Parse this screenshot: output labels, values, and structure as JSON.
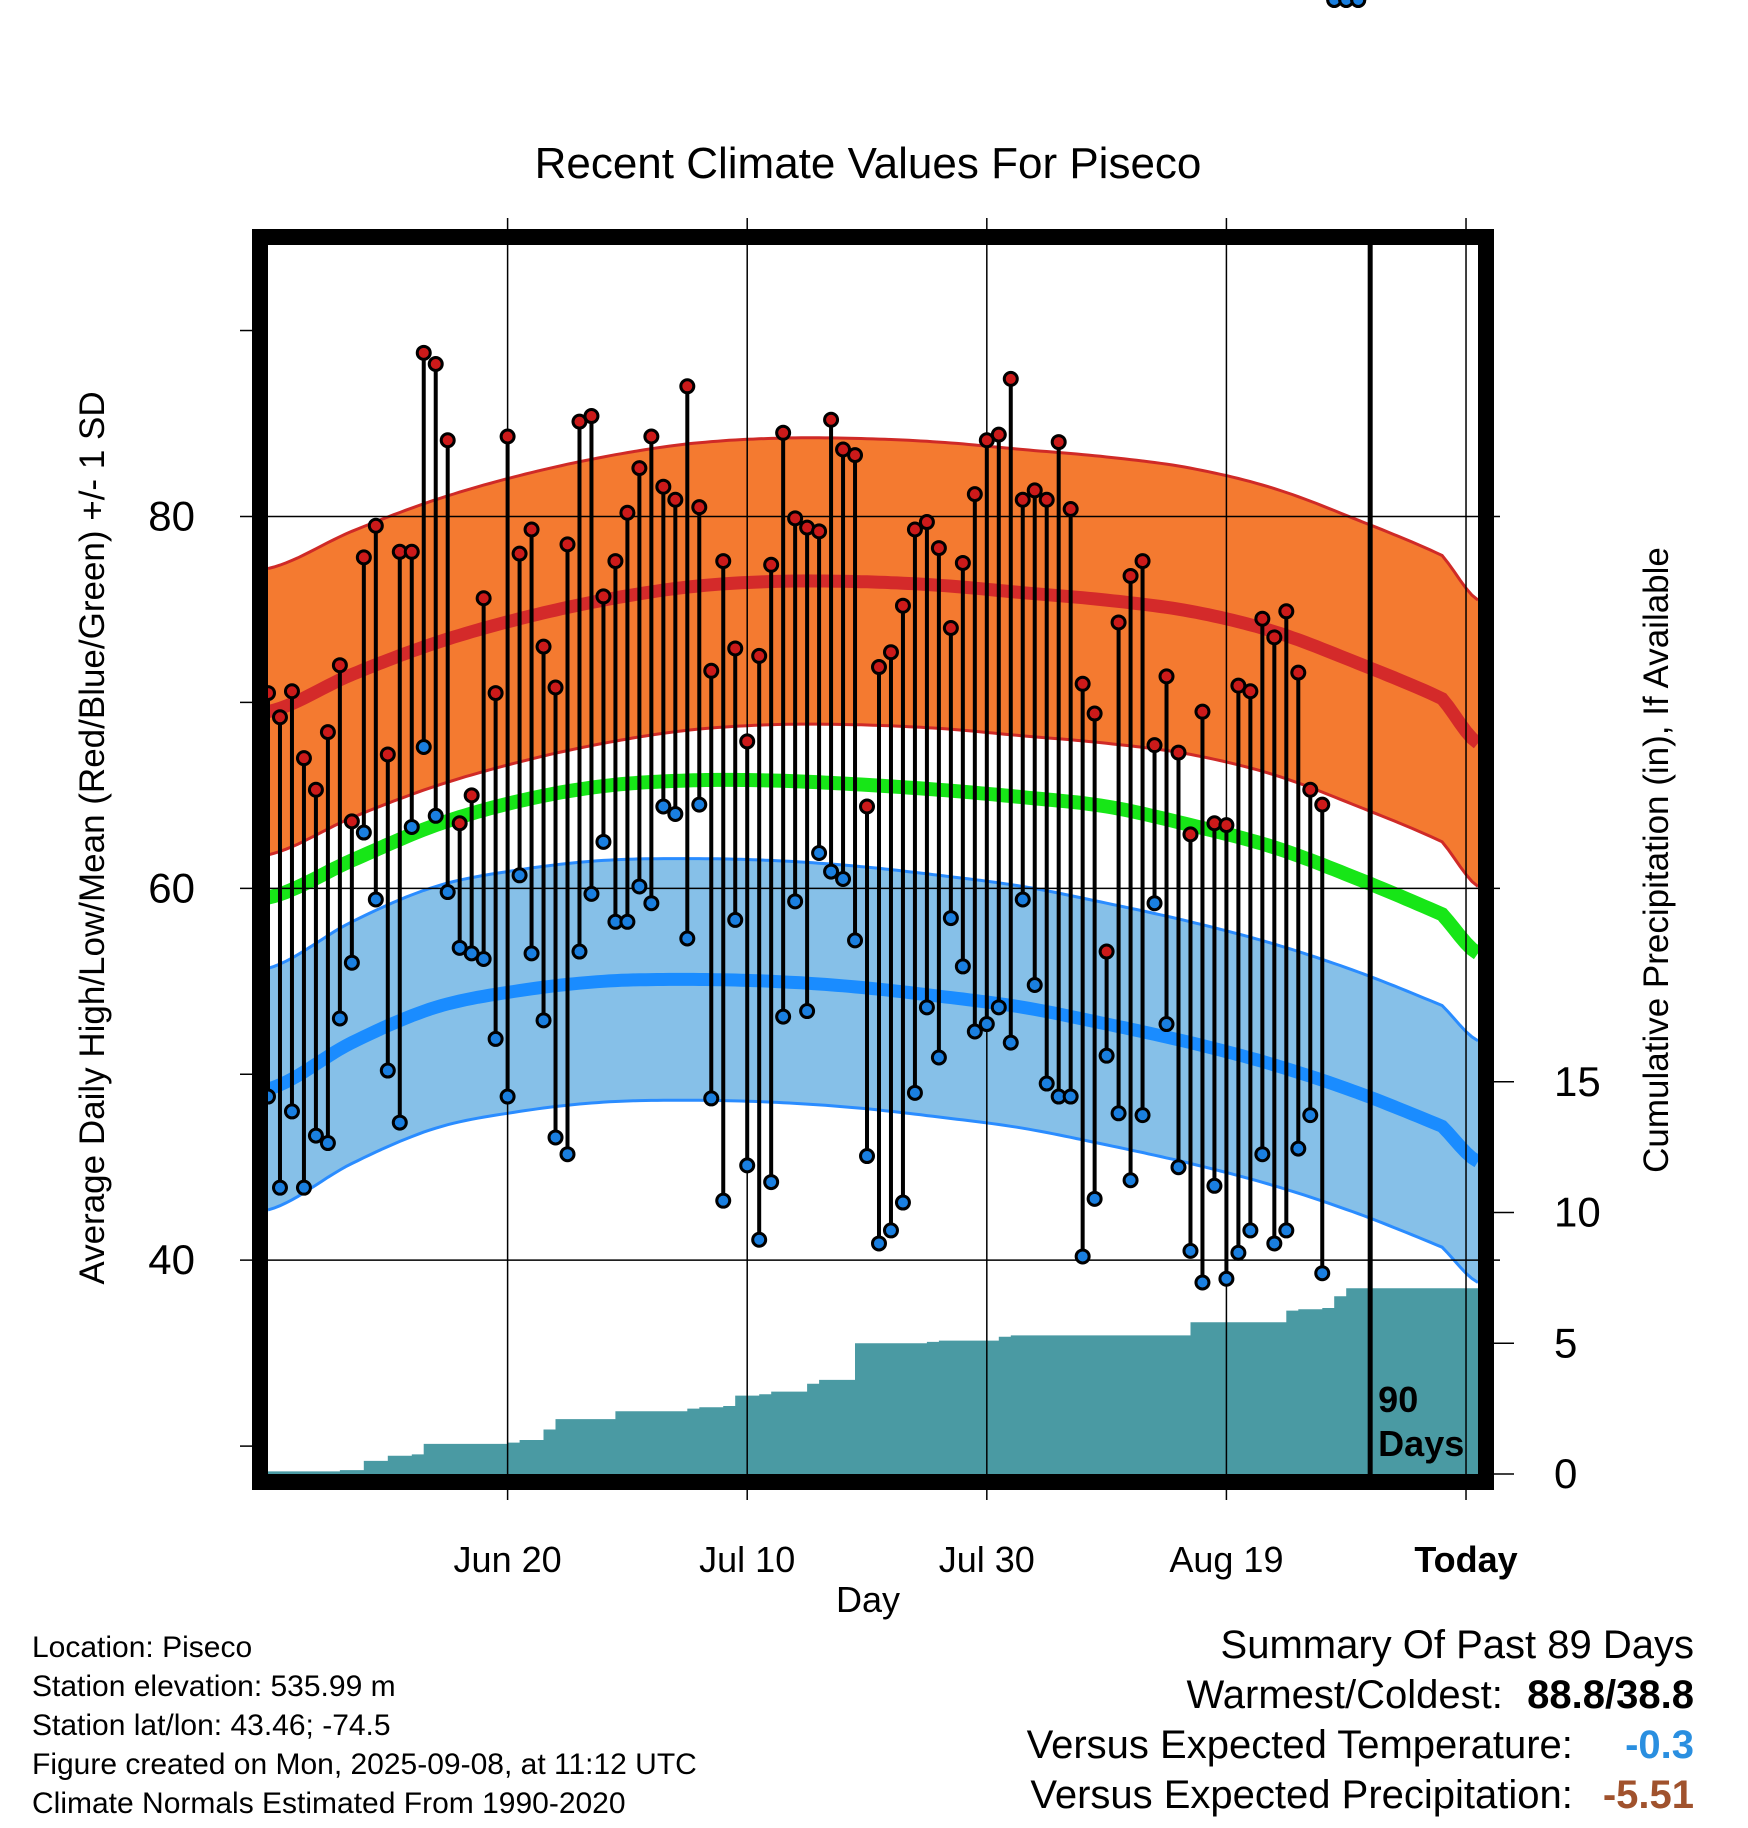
{
  "chart_data": {
    "type": "line",
    "title": "Recent Climate Values For Piseco",
    "xlabel": "Day",
    "ylabel": "Average Daily High/Low/Mean (Red/Blue/Green) +/- 1 SD",
    "y2label": "Cumulative Precipitation (in), If Available",
    "x_tick_labels": [
      "Jun 20",
      "Jul 10",
      "Jul 30",
      "Aug 19",
      "Today"
    ],
    "y_ticks": [
      40,
      60,
      80
    ],
    "y2_ticks": [
      0,
      5,
      10,
      15
    ],
    "ylim": [
      28.5,
      94.6
    ],
    "y2lim": [
      0,
      47
    ],
    "day_range": [
      -92,
      9
    ],
    "today_label": [
      "90",
      "Days"
    ],
    "grid": true,
    "colors": {
      "high_band": "#f47a30",
      "high_mean": "#d42a2a",
      "high_edge": "#cf2a27",
      "mean_temp": "#17e617",
      "low_band": "#86c0e8",
      "low_mean": "#1a8cff",
      "low_edge": "#2a8cff",
      "precip": "#4a9aa3",
      "high_dot": "#cc1a1a",
      "low_dot": "#1a7fe0"
    },
    "days": [
      -92,
      -91,
      -90,
      -89,
      -88,
      -87,
      -86,
      -85,
      -84,
      -83,
      -82,
      -81,
      -80,
      -79,
      -78,
      -77,
      -76,
      -75,
      -74,
      -73,
      -72,
      -71,
      -70,
      -69,
      -68,
      -67,
      -66,
      -65,
      -64,
      -63,
      -62,
      -61,
      -60,
      -59,
      -58,
      -57,
      -56,
      -55,
      -54,
      -53,
      -52,
      -51,
      -50,
      -49,
      -48,
      -47,
      -46,
      -45,
      -44,
      -43,
      -42,
      -41,
      -40,
      -39,
      -38,
      -37,
      -36,
      -35,
      -34,
      -33,
      -32,
      -31,
      -30,
      -29,
      -28,
      -27,
      -26,
      -25,
      -24,
      -23,
      -22,
      -21,
      -20,
      -19,
      -18,
      -17,
      -16,
      -15,
      -14,
      -13,
      -12,
      -11,
      -10,
      -9,
      -8,
      -7,
      -6,
      -5,
      -4,
      -3,
      -2,
      -1
    ],
    "daily_high": [
      70.5,
      69.2,
      70.6,
      67.0,
      65.3,
      68.4,
      72.0,
      63.6,
      77.8,
      79.5,
      67.2,
      78.1,
      78.1,
      88.8,
      88.2,
      84.1,
      63.5,
      65.0,
      75.6,
      70.5,
      84.3,
      78.0,
      79.3,
      73.0,
      70.8,
      78.5,
      85.1,
      85.4,
      75.7,
      77.6,
      80.2,
      82.6,
      84.3,
      81.6,
      80.9,
      87.0,
      80.5,
      71.7,
      77.6,
      72.9,
      67.9,
      72.5,
      77.4,
      84.5,
      79.9,
      79.4,
      79.2,
      85.2,
      83.6,
      83.3,
      64.4,
      71.9,
      72.7,
      75.2,
      79.3,
      79.7,
      78.3,
      74.0,
      77.5,
      81.2,
      84.1,
      84.4,
      87.4,
      80.9,
      81.4,
      80.9,
      84.0,
      80.4,
      71.0,
      69.4,
      56.6,
      74.3,
      76.8,
      77.6,
      67.7,
      71.4,
      67.3,
      62.9,
      69.5,
      63.5,
      63.4,
      70.9,
      70.6,
      74.5,
      73.5,
      74.9,
      71.6,
      65.3,
      64.5
    ],
    "daily_low": [
      48.8,
      43.9,
      48.0,
      43.9,
      46.7,
      46.3,
      53.0,
      56.0,
      63.0,
      59.4,
      50.2,
      47.4,
      63.3,
      67.6,
      63.9,
      59.8,
      56.8,
      56.5,
      56.2,
      51.9,
      48.8,
      60.7,
      56.5,
      52.9,
      46.6,
      45.7,
      56.6,
      59.7,
      62.5,
      58.2,
      58.2,
      60.1,
      59.2,
      64.4,
      64.0,
      57.3,
      64.5,
      48.7,
      43.2,
      58.3,
      45.1,
      41.1,
      44.2,
      53.1,
      59.3,
      53.4,
      61.9,
      60.9,
      60.5,
      57.2,
      45.6,
      40.9,
      41.6,
      43.1,
      49.0,
      53.6,
      50.9,
      58.4,
      55.8,
      52.3,
      52.7,
      53.6,
      51.7,
      59.4,
      54.8,
      49.5,
      48.8,
      48.8,
      40.2,
      43.3,
      51.0,
      47.9,
      44.3,
      47.8,
      59.2,
      52.7,
      45.0,
      40.5,
      38.8,
      44.0,
      39.0,
      40.4,
      41.6,
      45.7,
      40.9,
      41.6,
      46.0,
      47.8,
      39.3
    ],
    "normal_high_mean": [
      69.5,
      71.5,
      73.2,
      74.5,
      75.5,
      76.2,
      76.5,
      76.5,
      76.3,
      75.9,
      75.5,
      74.9,
      73.8,
      72.1,
      70.2,
      67.8
    ],
    "normal_mean_temp": [
      59.5,
      61.5,
      63.4,
      64.7,
      65.5,
      65.8,
      65.8,
      65.6,
      65.3,
      64.9,
      64.4,
      63.4,
      62.2,
      60.5,
      58.6,
      56.5
    ],
    "normal_low_mean": [
      49.2,
      51.7,
      53.6,
      54.5,
      55.0,
      55.1,
      55.0,
      54.7,
      54.2,
      53.6,
      52.7,
      51.7,
      50.5,
      49.0,
      47.2,
      45.3
    ],
    "normal_sd_high": 7.7,
    "normal_sd_low": 6.5,
    "normal_days": [
      -92,
      -85,
      -78,
      -71,
      -64,
      -57,
      -50,
      -43,
      -36,
      -29,
      -22,
      -15,
      -8,
      -1,
      6,
      9
    ],
    "precip_days": [
      -92,
      -88,
      -86,
      -84,
      -82,
      -80,
      -79,
      -72,
      -71,
      -69,
      -68,
      -63,
      -62,
      -57,
      -56,
      -54,
      -53,
      -51,
      -50,
      -47,
      -46,
      -44,
      -43,
      -38,
      -37,
      -36,
      -35,
      -31,
      -30,
      -26,
      -25,
      -19,
      -18,
      -16,
      -15,
      -12,
      -11,
      -7,
      -6,
      -4,
      -3,
      -2,
      1,
      9
    ],
    "cumulative_precip": [
      0.1,
      0.1,
      0.15,
      0.5,
      0.7,
      0.75,
      1.15,
      1.2,
      1.3,
      1.7,
      2.1,
      2.4,
      2.4,
      2.5,
      2.55,
      2.6,
      3.0,
      3.05,
      3.15,
      3.45,
      3.6,
      3.6,
      5.0,
      5.0,
      5.05,
      5.1,
      5.1,
      5.25,
      5.3,
      5.3,
      5.3,
      5.3,
      5.3,
      5.3,
      5.8,
      5.8,
      5.8,
      6.25,
      6.3,
      6.35,
      6.8,
      7.1,
      7.1,
      7.8
    ]
  },
  "info": {
    "location": "Location: Piseco",
    "elevation": "Station elevation: 535.99 m",
    "latlon": "Station lat/lon: 43.46; -74.5",
    "created": "Figure created on Mon, 2025-09-08, at 11:12 UTC",
    "normals": "Climate Normals Estimated From 1990-2020"
  },
  "summary": {
    "heading": "Summary Of Past 89 Days",
    "warm_cold_label": "Warmest/Coldest:",
    "warm_cold_value": "88.8/38.8",
    "temp_label": "Versus Expected Temperature:",
    "temp_value": "-0.3",
    "temp_color": "#2a8fe0",
    "precip_label": "Versus Expected Precipitation:",
    "precip_value": "-5.51",
    "precip_color": "#a0522d"
  }
}
